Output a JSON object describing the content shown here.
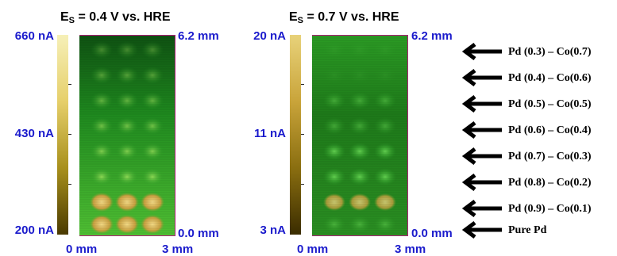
{
  "panels": [
    {
      "title_main": "E",
      "title_sub": "S",
      "title_rest": " = 0.4 V vs. HRE",
      "colorbar": {
        "max": "660 nA",
        "mid": "430 nA",
        "min": "200 nA",
        "colors": [
          "#4a3a00",
          "#a8901c",
          "#e6cf6a",
          "#f6f0b8"
        ]
      },
      "y_top": "6.2 mm",
      "y_bottom": "0.0 mm",
      "x_left": "0 mm",
      "x_right": "3 mm"
    },
    {
      "title_main": "E",
      "title_sub": "S",
      "title_rest": " = 0.7 V vs. HRE",
      "colorbar": {
        "max": "20 nA",
        "mid": "11 nA",
        "min": "3 nA",
        "colors": [
          "#3a2c00",
          "#8a6e10",
          "#c9a43a",
          "#e8d27a"
        ]
      },
      "y_top": "6.2 mm",
      "y_bottom": "0.0 mm",
      "x_left": "0 mm",
      "x_right": "3 mm"
    }
  ],
  "samples": [
    {
      "label": "Pd (0.3) – Co(0.7)",
      "icon": "arrow-left-icon"
    },
    {
      "label": "Pd (0.4) – Co(0.6)",
      "icon": "arrow-left-icon"
    },
    {
      "label": "Pd (0.5) – Co(0.5)",
      "icon": "arrow-left-icon"
    },
    {
      "label": "Pd (0.6) – Co(0.4)",
      "icon": "arrow-left-icon"
    },
    {
      "label": "Pd (0.7) – Co(0.3)",
      "icon": "arrow-left-icon"
    },
    {
      "label": "Pd (0.8) – Co(0.2)",
      "icon": "arrow-left-icon"
    },
    {
      "label": "Pd (0.9) – Co(0.1)",
      "icon": "arrow-left-icon"
    },
    {
      "label": "Pure Pd",
      "icon": "arrow-left-icon"
    }
  ]
}
